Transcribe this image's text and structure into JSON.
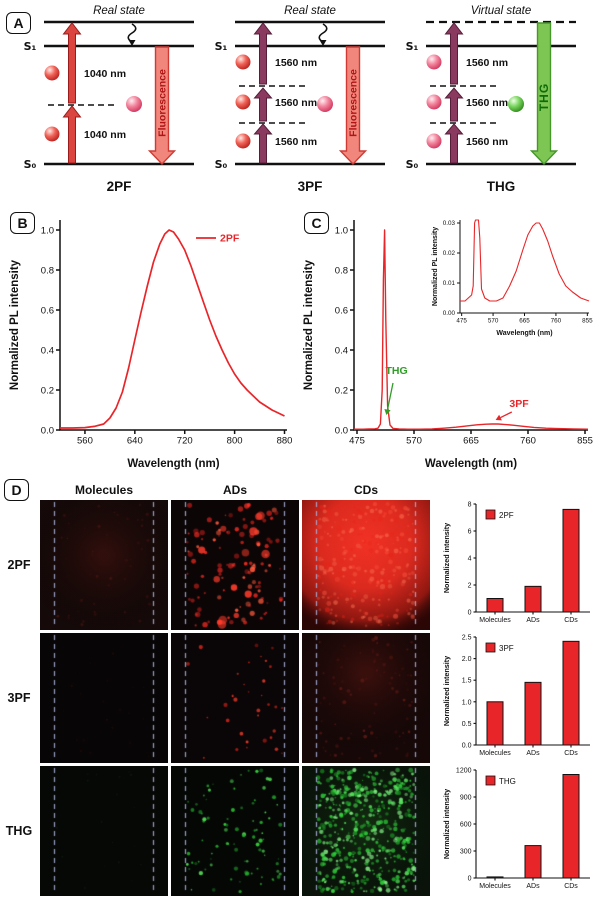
{
  "labels": {
    "a": "A",
    "b": "B",
    "c": "C",
    "d": "D"
  },
  "colors": {
    "red": "#e8262a",
    "green": "#2f9e27",
    "guide_dash": "#a9b0d8"
  },
  "panel_a": {
    "diagrams": [
      {
        "state": "Real state",
        "s1": "S₁",
        "s0": "S₀",
        "photons": [
          "1040 nm",
          "1040 nm"
        ],
        "emission": "Fluorescence",
        "footer": "2PF"
      },
      {
        "state": "Real state",
        "s1": "S₁",
        "s0": "S₀",
        "photons": [
          "1560 nm",
          "1560 nm",
          "1560 nm"
        ],
        "emission": "Fluorescence",
        "footer": "3PF"
      },
      {
        "state": "Virtual state",
        "s1": "S₁",
        "s0": "S₀",
        "photons": [
          "1560 nm",
          "1560 nm",
          "1560 nm"
        ],
        "emission": "THG",
        "footer": "THG"
      }
    ]
  },
  "panel_d": {
    "col_headers": [
      "Molecules",
      "ADs",
      "CDs"
    ],
    "row_labels": [
      "2PF",
      "3PF",
      "THG"
    ]
  },
  "chart_data": [
    {
      "id": "panel_b",
      "type": "line",
      "xlabel": "Wavelength (nm)",
      "ylabel": "Normalized PL intensity",
      "xlim": [
        520,
        884
      ],
      "ylim": [
        0,
        1.05
      ],
      "xticks": [
        "560",
        "640",
        "720",
        "800",
        "880"
      ],
      "yticks": [
        "0.0",
        "0.2",
        "0.4",
        "0.6",
        "0.8",
        "1.0"
      ],
      "legend": {
        "label": "2PF",
        "color": "#e8262a"
      },
      "series": [
        {
          "name": "2PF",
          "color": "#e8262a",
          "x": [
            520,
            540,
            560,
            575,
            590,
            600,
            610,
            620,
            630,
            640,
            650,
            660,
            670,
            680,
            688,
            695,
            702,
            710,
            720,
            730,
            740,
            750,
            760,
            770,
            780,
            790,
            800,
            810,
            820,
            830,
            840,
            850,
            860,
            870,
            880
          ],
          "y": [
            0.01,
            0.01,
            0.012,
            0.018,
            0.03,
            0.06,
            0.11,
            0.19,
            0.31,
            0.45,
            0.59,
            0.72,
            0.84,
            0.93,
            0.98,
            1.0,
            0.99,
            0.955,
            0.9,
            0.82,
            0.73,
            0.64,
            0.55,
            0.47,
            0.4,
            0.335,
            0.28,
            0.235,
            0.2,
            0.17,
            0.14,
            0.12,
            0.1,
            0.085,
            0.07
          ]
        }
      ]
    },
    {
      "id": "panel_c",
      "type": "line",
      "xlabel": "Wavelength (nm)",
      "ylabel": "Normalized PL intensity",
      "xlim": [
        470,
        860
      ],
      "ylim": [
        0,
        1.05
      ],
      "xticks": [
        "475",
        "570",
        "665",
        "760",
        "855"
      ],
      "yticks": [
        "0.0",
        "0.2",
        "0.4",
        "0.6",
        "0.8",
        "1.0"
      ],
      "annotations": [
        {
          "text": "THG",
          "color": "#2f9e27",
          "x": 541,
          "y": 0.28,
          "arrow": [
            535,
            0.235,
            524,
            0.075
          ]
        },
        {
          "text": "3PF",
          "color": "#e8262a",
          "x": 745,
          "y": 0.115,
          "arrow": [
            733,
            0.09,
            706,
            0.05
          ]
        }
      ],
      "series": [
        {
          "name": "PL",
          "color": "#e8262a",
          "x": [
            470,
            485,
            495,
            505,
            510,
            514,
            517,
            519,
            521,
            523,
            526,
            530,
            535,
            545,
            560,
            580,
            600,
            620,
            640,
            660,
            675,
            690,
            700,
            710,
            720,
            735,
            750,
            770,
            790,
            810,
            835,
            860
          ],
          "y": [
            0.004,
            0.004,
            0.005,
            0.006,
            0.009,
            0.03,
            0.2,
            0.75,
            1.0,
            0.55,
            0.12,
            0.025,
            0.008,
            0.005,
            0.004,
            0.004,
            0.005,
            0.009,
            0.014,
            0.021,
            0.026,
            0.029,
            0.03,
            0.03,
            0.028,
            0.024,
            0.019,
            0.013,
            0.009,
            0.007,
            0.005,
            0.004
          ]
        }
      ]
    },
    {
      "id": "panel_c_inset",
      "type": "line",
      "xlabel": "Wavelength (nm)",
      "ylabel": "Normalized PL intensity",
      "xlim": [
        470,
        860
      ],
      "ylim": [
        0,
        0.031
      ],
      "xticks": [
        "475",
        "570",
        "665",
        "760",
        "855"
      ],
      "yticks": [
        "0.00",
        "0.01",
        "0.02",
        "0.03"
      ],
      "series": [
        {
          "name": "PL",
          "color": "#e8262a",
          "x": [
            470,
            485,
            495,
            505,
            510,
            514,
            517,
            519,
            521,
            523,
            526,
            530,
            535,
            545,
            560,
            580,
            600,
            620,
            640,
            660,
            675,
            690,
            700,
            710,
            720,
            735,
            750,
            770,
            790,
            810,
            835,
            860
          ],
          "y": [
            0.004,
            0.004,
            0.005,
            0.006,
            0.009,
            0.03,
            0.2,
            0.75,
            1.0,
            0.55,
            0.12,
            0.025,
            0.008,
            0.005,
            0.004,
            0.004,
            0.005,
            0.009,
            0.014,
            0.021,
            0.026,
            0.029,
            0.03,
            0.03,
            0.028,
            0.024,
            0.019,
            0.013,
            0.009,
            0.007,
            0.005,
            0.004
          ]
        }
      ]
    },
    {
      "id": "bar_2pf",
      "type": "bar",
      "ylabel": "Normalized intensity",
      "categories": [
        "Molecules",
        "ADs",
        "CDs"
      ],
      "values": [
        1.0,
        1.9,
        7.6
      ],
      "ylim": [
        0,
        8
      ],
      "yticks": [
        "0",
        "2",
        "4",
        "6",
        "8"
      ],
      "legend": {
        "label": "2PF",
        "color": "#e8262a"
      }
    },
    {
      "id": "bar_3pf",
      "type": "bar",
      "ylabel": "Normalized intensity",
      "categories": [
        "Molecules",
        "ADs",
        "CDs"
      ],
      "values": [
        1.0,
        1.45,
        2.4
      ],
      "ylim": [
        0,
        2.5
      ],
      "yticks": [
        "0.0",
        "0.5",
        "1.0",
        "1.5",
        "2.0",
        "2.5"
      ],
      "legend": {
        "label": "3PF",
        "color": "#e8262a"
      }
    },
    {
      "id": "bar_thg",
      "type": "bar",
      "ylabel": "Normalized intensity",
      "categories": [
        "Molecules",
        "ADs",
        "CDs"
      ],
      "values": [
        12,
        360,
        1150
      ],
      "ylim": [
        0,
        1200
      ],
      "yticks": [
        "0",
        "300",
        "600",
        "900",
        "1200"
      ],
      "legend": {
        "label": "THG",
        "color": "#e8262a"
      }
    }
  ]
}
